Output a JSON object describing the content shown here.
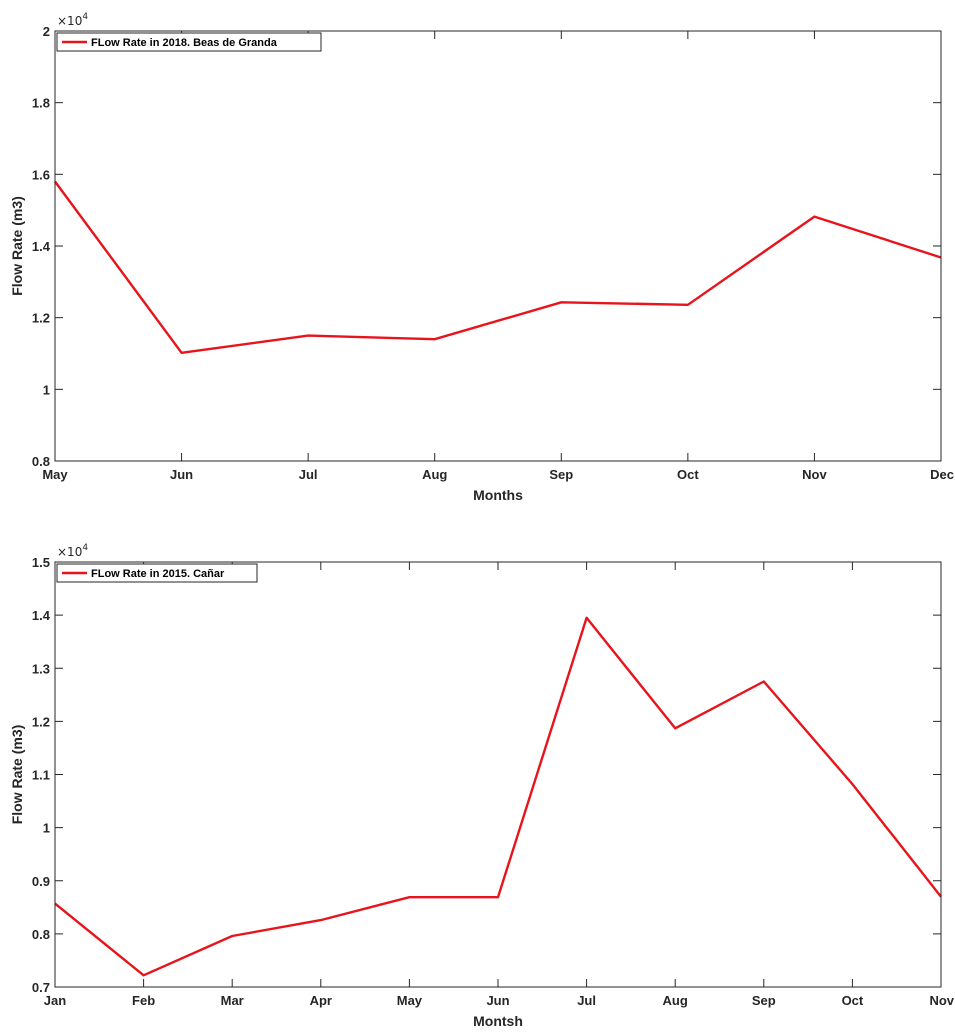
{
  "chart_data": [
    {
      "type": "line",
      "title": "",
      "xlabel": "Months",
      "ylabel": "Flow Rate (m3)",
      "categories": [
        "May",
        "Jun",
        "Jul",
        "Aug",
        "Sep",
        "Oct",
        "Nov",
        "Dec"
      ],
      "series": [
        {
          "name": "FLow Rate in 2018. Beas de Granda",
          "color": "#e8141c",
          "values": [
            15800,
            11020,
            11500,
            11400,
            12430,
            12360,
            14820,
            13680
          ]
        }
      ],
      "ylim": [
        8000,
        20000
      ],
      "yticks": [
        8000,
        10000,
        12000,
        14000,
        16000,
        18000,
        20000
      ],
      "ytick_labels": [
        "0.8",
        "1",
        "1.2",
        "1.4",
        "1.6",
        "1.8",
        "2"
      ],
      "exponent_label": "×10",
      "exponent_power": "4",
      "legend_position": "top-left",
      "grid": false
    },
    {
      "type": "line",
      "title": "",
      "xlabel": "Montsh",
      "ylabel": "Flow Rate (m3)",
      "categories": [
        "Jan",
        "Feb",
        "Mar",
        "Apr",
        "May",
        "Jun",
        "Jul",
        "Aug",
        "Sep",
        "Oct",
        "Nov"
      ],
      "series": [
        {
          "name": "FLow Rate in 2015. Cañar",
          "color": "#e8141c",
          "values": [
            8570,
            7220,
            7960,
            8260,
            8690,
            8690,
            13950,
            11870,
            12750,
            10820,
            8700
          ]
        }
      ],
      "ylim": [
        7000,
        15000
      ],
      "yticks": [
        7000,
        8000,
        9000,
        10000,
        11000,
        12000,
        13000,
        14000,
        15000
      ],
      "ytick_labels": [
        "0.7",
        "0.8",
        "0.9",
        "1",
        "1.1",
        "1.2",
        "1.3",
        "1.4",
        "1.5"
      ],
      "exponent_label": "×10",
      "exponent_power": "4",
      "legend_position": "top-left",
      "grid": false
    }
  ]
}
